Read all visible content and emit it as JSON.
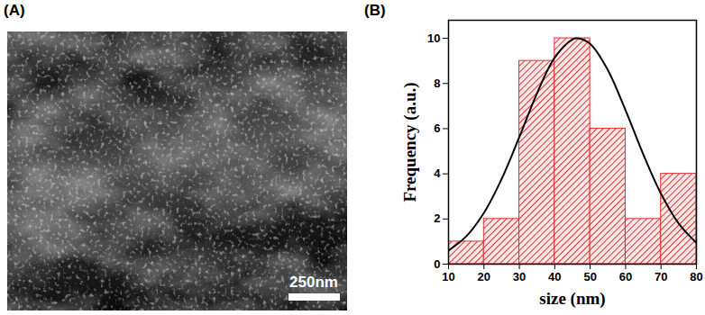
{
  "image": {
    "label": "(A)",
    "scale_bar_label": "250nm"
  },
  "chart_data": {
    "type": "histogram",
    "title": "(B)",
    "x_label": "size (nm)",
    "y_label": "Frequency (a.u.)",
    "bins": [
      10,
      20,
      30,
      40,
      50,
      60,
      70,
      80
    ],
    "values": [
      1,
      2,
      9,
      10,
      6,
      2,
      4
    ],
    "color": "#e03030",
    "fit": {
      "type": "line",
      "color": "#000000",
      "x": [
        10,
        15,
        20,
        25,
        30,
        35,
        40,
        45,
        46.5,
        50,
        55,
        60,
        65,
        70,
        75,
        80
      ],
      "values": [
        0.6,
        1.23,
        2.27,
        3.77,
        5.63,
        7.57,
        9.15,
        9.95,
        10,
        9.75,
        8.59,
        6.81,
        4.86,
        3.12,
        1.8,
        0.94
      ]
    },
    "xlim": [
      10,
      80
    ],
    "xticks": [
      10,
      20,
      30,
      40,
      50,
      60,
      70,
      80
    ],
    "ylim": [
      0,
      10.8
    ],
    "yticks": [
      0,
      2,
      4,
      6,
      8,
      10
    ]
  }
}
